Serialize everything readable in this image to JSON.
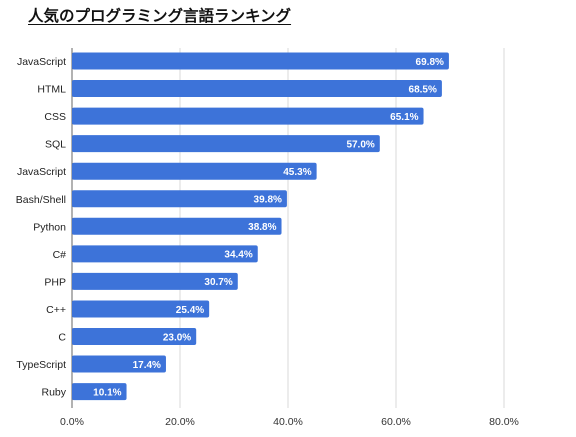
{
  "chart_data": {
    "type": "bar",
    "orientation": "horizontal",
    "title": "人気のプログラミング言語ランキング",
    "categories": [
      "JavaScript",
      "HTML",
      "CSS",
      "SQL",
      "JavaScript",
      "Bash/Shell",
      "Python",
      "C#",
      "PHP",
      "C++",
      "C",
      "TypeScript",
      "Ruby"
    ],
    "values": [
      69.8,
      68.5,
      65.1,
      57.0,
      45.3,
      39.8,
      38.8,
      34.4,
      30.7,
      25.4,
      23.0,
      17.4,
      10.1
    ],
    "value_labels": [
      "69.8%",
      "68.5%",
      "65.1%",
      "57.0%",
      "45.3%",
      "39.8%",
      "38.8%",
      "34.4%",
      "30.7%",
      "25.4%",
      "23.0%",
      "17.4%",
      "10.1%"
    ],
    "xlim": [
      0,
      80
    ],
    "x_ticks": [
      0,
      20,
      40,
      60,
      80
    ],
    "x_tick_labels": [
      "0.0%",
      "20.0%",
      "40.0%",
      "60.0%",
      "80.0%"
    ],
    "xlabel": "",
    "ylabel": "",
    "grid": "vertical",
    "bar_color": "#3d73d9",
    "legend": "none"
  }
}
